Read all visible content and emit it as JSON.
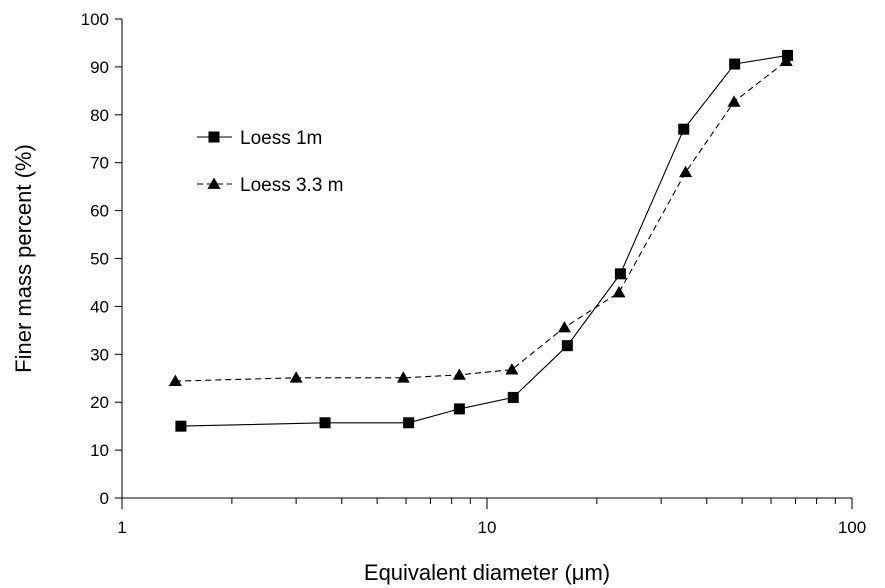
{
  "chart_data": {
    "type": "line",
    "xlabel": "Equivalent diameter (μm)",
    "ylabel": "Finer mass percent (%)",
    "x_scale": "log",
    "xlim": [
      1,
      100
    ],
    "ylim": [
      0,
      100
    ],
    "x_ticks": [
      1,
      10,
      100
    ],
    "y_ticks": [
      0,
      10,
      20,
      30,
      40,
      50,
      60,
      70,
      80,
      90,
      100
    ],
    "grid": false,
    "legend_position": "upper-left",
    "series": [
      {
        "name": "Loess 1m",
        "marker": "square",
        "line_style": "solid",
        "color": "#000000",
        "points": [
          {
            "x": 1.45,
            "y": 15
          },
          {
            "x": 3.6,
            "y": 15.7
          },
          {
            "x": 6.1,
            "y": 15.7
          },
          {
            "x": 8.4,
            "y": 18.6
          },
          {
            "x": 11.8,
            "y": 21
          },
          {
            "x": 16.6,
            "y": 31.8
          },
          {
            "x": 23.2,
            "y": 46.8
          },
          {
            "x": 34.6,
            "y": 77
          },
          {
            "x": 47.7,
            "y": 90.6
          },
          {
            "x": 66.6,
            "y": 92.4
          }
        ]
      },
      {
        "name": "Loess 3.3 m",
        "marker": "triangle",
        "line_style": "dashed",
        "color": "#000000",
        "points": [
          {
            "x": 1.4,
            "y": 24.4
          },
          {
            "x": 3.0,
            "y": 25.1
          },
          {
            "x": 5.9,
            "y": 25.1
          },
          {
            "x": 8.4,
            "y": 25.7
          },
          {
            "x": 11.7,
            "y": 26.8
          },
          {
            "x": 16.3,
            "y": 35.6
          },
          {
            "x": 23.0,
            "y": 42.9
          },
          {
            "x": 35.0,
            "y": 68
          },
          {
            "x": 47.5,
            "y": 82.7
          },
          {
            "x": 66.0,
            "y": 91.2
          }
        ]
      }
    ]
  }
}
